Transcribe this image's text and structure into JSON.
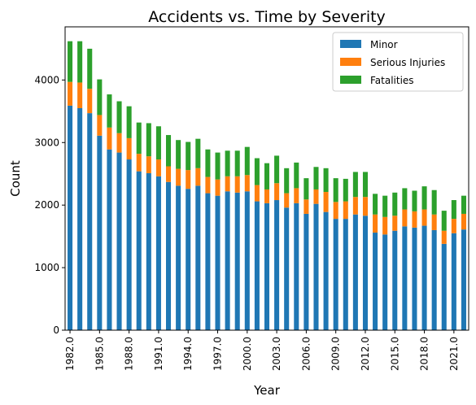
{
  "chart_data": {
    "type": "bar",
    "stacked": true,
    "title": "Accidents vs. Time by Severity",
    "xlabel": "Year",
    "ylabel": "Count",
    "ylim": [
      0,
      4850
    ],
    "yticks": [
      0,
      1000,
      2000,
      3000,
      4000
    ],
    "grid": false,
    "legend_position": "top-right",
    "categories": [
      "1982.0",
      "1983.0",
      "1984.0",
      "1985.0",
      "1986.0",
      "1987.0",
      "1988.0",
      "1989.0",
      "1990.0",
      "1991.0",
      "1992.0",
      "1993.0",
      "1994.0",
      "1995.0",
      "1996.0",
      "1997.0",
      "1998.0",
      "1999.0",
      "2000.0",
      "2001.0",
      "2002.0",
      "2003.0",
      "2004.0",
      "2005.0",
      "2006.0",
      "2007.0",
      "2008.0",
      "2009.0",
      "2010.0",
      "2011.0",
      "2012.0",
      "2013.0",
      "2014.0",
      "2015.0",
      "2016.0",
      "2017.0",
      "2018.0",
      "2019.0",
      "2020.0",
      "2021.0",
      "2022.0"
    ],
    "tick_labels": [
      "1982.0",
      "1985.0",
      "1988.0",
      "1991.0",
      "1994.0",
      "1997.0",
      "2000.0",
      "2003.0",
      "2006.0",
      "2009.0",
      "2012.0",
      "2015.0",
      "2018.0",
      "2021.0"
    ],
    "series": [
      {
        "name": "Minor",
        "color": "#1f77b4",
        "values": [
          3590,
          3550,
          3470,
          3110,
          2890,
          2840,
          2730,
          2540,
          2510,
          2460,
          2370,
          2310,
          2260,
          2310,
          2190,
          2150,
          2220,
          2200,
          2220,
          2060,
          2030,
          2080,
          1960,
          2030,
          1860,
          2020,
          1890,
          1780,
          1780,
          1850,
          1830,
          1560,
          1530,
          1590,
          1660,
          1640,
          1670,
          1600,
          1380,
          1550,
          1610
        ]
      },
      {
        "name": "Serious Injuries",
        "color": "#ff7f0e",
        "values": [
          380,
          410,
          390,
          330,
          350,
          310,
          340,
          280,
          270,
          270,
          250,
          270,
          300,
          280,
          260,
          260,
          240,
          260,
          260,
          260,
          220,
          270,
          230,
          240,
          230,
          230,
          320,
          270,
          280,
          280,
          300,
          290,
          280,
          240,
          270,
          260,
          260,
          250,
          210,
          230,
          250
        ]
      },
      {
        "name": "Fatalities",
        "color": "#2ca02c",
        "values": [
          650,
          660,
          640,
          570,
          530,
          510,
          510,
          500,
          530,
          530,
          500,
          460,
          450,
          470,
          440,
          430,
          410,
          410,
          450,
          430,
          420,
          440,
          400,
          410,
          340,
          360,
          380,
          380,
          360,
          400,
          400,
          330,
          340,
          370,
          340,
          330,
          370,
          390,
          320,
          300,
          290
        ]
      }
    ]
  }
}
